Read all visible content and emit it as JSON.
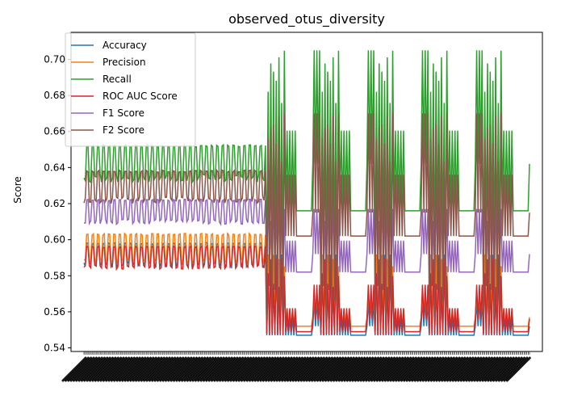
{
  "chart_data": {
    "type": "line",
    "title": "observed_otus_diversity",
    "xlabel": "",
    "ylabel": "Score",
    "ylim": [
      0.538,
      0.715
    ],
    "yticks": [
      0.54,
      0.56,
      0.58,
      0.6,
      0.62,
      0.64,
      0.66,
      0.68,
      0.7
    ],
    "ytick_labels": [
      "0.54",
      "0.56",
      "0.58",
      "0.60",
      "0.62",
      "0.64",
      "0.66",
      "0.68",
      "0.70"
    ],
    "x_count": 330,
    "xtick_labels_legible": false,
    "grid": false,
    "legend_position": "upper left",
    "series": [
      {
        "name": "Accuracy",
        "color": "#1f77b4",
        "phase1": {
          "low": 0.586,
          "high": 0.598
        },
        "phase2": {
          "min": 0.547,
          "max": 0.592,
          "baseline": 0.547,
          "ends": [
            0.552,
            0.566
          ]
        }
      },
      {
        "name": "Precision",
        "color": "#ff7f0e",
        "phase1": {
          "low": 0.588,
          "high": 0.603
        },
        "phase2": {
          "min": 0.552,
          "max": 0.592,
          "baseline": 0.552,
          "ends": [
            0.557,
            0.57
          ]
        }
      },
      {
        "name": "Recall",
        "color": "#2ca02c",
        "phase1": {
          "low": 0.634,
          "high": 0.652
        },
        "phase2": {
          "min": 0.585,
          "max": 0.705,
          "baseline": 0.616,
          "ends": [
            0.642,
            0.705
          ]
        }
      },
      {
        "name": "ROC AUC Score",
        "color": "#d62728",
        "phase1": {
          "low": 0.585,
          "high": 0.596
        },
        "phase2": {
          "min": 0.547,
          "max": 0.59,
          "baseline": 0.549,
          "ends": [
            0.556,
            0.575
          ]
        }
      },
      {
        "name": "F1 Score",
        "color": "#9467bd",
        "phase1": {
          "low": 0.61,
          "high": 0.622
        },
        "phase2": {
          "min": 0.582,
          "max": 0.627,
          "baseline": 0.582,
          "ends": [
            0.592,
            0.617
          ]
        }
      },
      {
        "name": "F2 Score",
        "color": "#8c564b",
        "phase1": {
          "low": 0.622,
          "high": 0.638
        },
        "phase2": {
          "min": 0.556,
          "max": 0.67,
          "baseline": 0.602,
          "ends": [
            0.615,
            0.67
          ]
        }
      }
    ],
    "phase_boundary_index": 135,
    "block_length": 40
  }
}
